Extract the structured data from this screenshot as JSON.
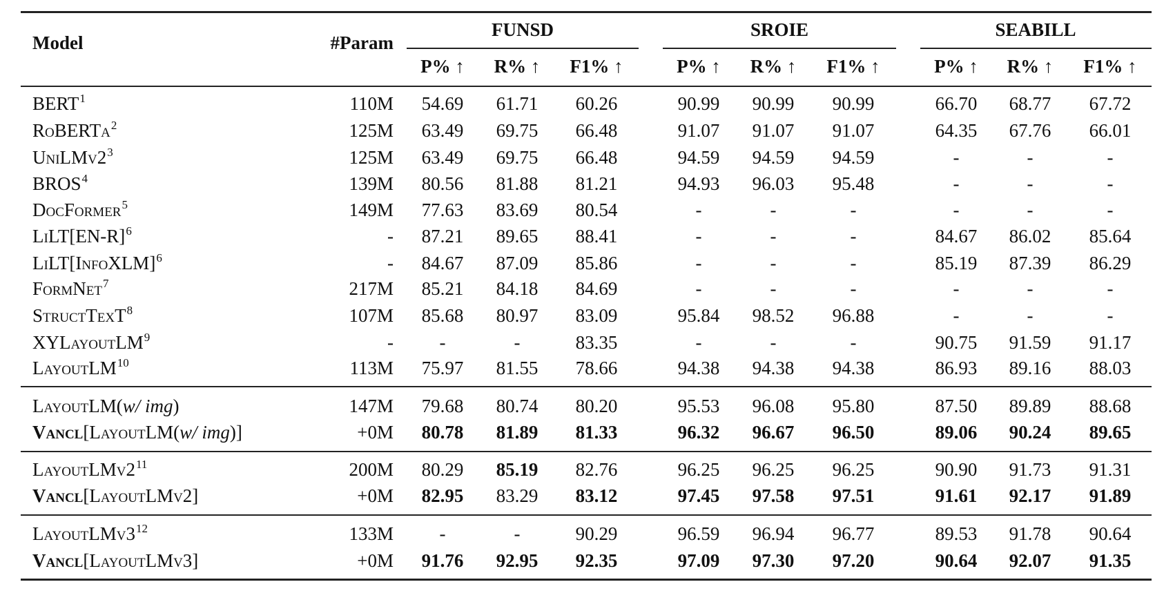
{
  "header": {
    "model": "Model",
    "param": "#Param",
    "groups": [
      "FUNSD",
      "SROIE",
      "SEABILL"
    ],
    "metrics": [
      "P%",
      "R%",
      "F1%"
    ],
    "arrow": "↑"
  },
  "rows": [
    {
      "model": [
        {
          "t": "BERT",
          "s": ""
        }
      ],
      "sup": "1",
      "param": "110M",
      "values": [
        "54.69",
        "61.71",
        "60.26",
        "90.99",
        "90.99",
        "90.99",
        "66.70",
        "68.77",
        "67.72"
      ],
      "bold": []
    },
    {
      "model": [
        {
          "t": "RoBERTa",
          "s": "sc"
        }
      ],
      "sup": "2",
      "param": "125M",
      "values": [
        "63.49",
        "69.75",
        "66.48",
        "91.07",
        "91.07",
        "91.07",
        "64.35",
        "67.76",
        "66.01"
      ],
      "bold": []
    },
    {
      "model": [
        {
          "t": "UniLMv2",
          "s": "sc"
        }
      ],
      "sup": "3",
      "param": "125M",
      "values": [
        "63.49",
        "69.75",
        "66.48",
        "94.59",
        "94.59",
        "94.59",
        "-",
        "-",
        "-"
      ],
      "bold": []
    },
    {
      "model": [
        {
          "t": "BROS",
          "s": ""
        }
      ],
      "sup": "4",
      "param": "139M",
      "values": [
        "80.56",
        "81.88",
        "81.21",
        "94.93",
        "96.03",
        "95.48",
        "-",
        "-",
        "-"
      ],
      "bold": []
    },
    {
      "model": [
        {
          "t": "DocFormer",
          "s": "sc"
        }
      ],
      "sup": "5",
      "param": "149M",
      "values": [
        "77.63",
        "83.69",
        "80.54",
        "-",
        "-",
        "-",
        "-",
        "-",
        "-"
      ],
      "bold": []
    },
    {
      "model": [
        {
          "t": "LiLT[EN-R]",
          "s": "sc"
        }
      ],
      "sup": "6",
      "param": "-",
      "values": [
        "87.21",
        "89.65",
        "88.41",
        "-",
        "-",
        "-",
        "84.67",
        "86.02",
        "85.64"
      ],
      "bold": []
    },
    {
      "model": [
        {
          "t": "LiLT[InfoXLM]",
          "s": "sc"
        }
      ],
      "sup": "6",
      "param": "-",
      "values": [
        "84.67",
        "87.09",
        "85.86",
        "-",
        "-",
        "-",
        "85.19",
        "87.39",
        "86.29"
      ],
      "bold": []
    },
    {
      "model": [
        {
          "t": "FormNet",
          "s": "sc"
        }
      ],
      "sup": "7",
      "param": "217M",
      "values": [
        "85.21",
        "84.18",
        "84.69",
        "-",
        "-",
        "-",
        "-",
        "-",
        "-"
      ],
      "bold": []
    },
    {
      "model": [
        {
          "t": "StructTexT",
          "s": "sc"
        }
      ],
      "sup": "8",
      "param": "107M",
      "values": [
        "85.68",
        "80.97",
        "83.09",
        "95.84",
        "98.52",
        "96.88",
        "-",
        "-",
        "-"
      ],
      "bold": []
    },
    {
      "model": [
        {
          "t": "XYLayoutLM",
          "s": "sc"
        }
      ],
      "sup": "9",
      "param": "-",
      "values": [
        "-",
        "-",
        "83.35",
        "-",
        "-",
        "-",
        "90.75",
        "91.59",
        "91.17"
      ],
      "bold": []
    },
    {
      "model": [
        {
          "t": "LayoutLM",
          "s": "sc"
        }
      ],
      "sup": "10",
      "param": "113M",
      "values": [
        "75.97",
        "81.55",
        "78.66",
        "94.38",
        "94.38",
        "94.38",
        "86.93",
        "89.16",
        "88.03"
      ],
      "bold": []
    },
    {
      "model": [
        {
          "t": "LayoutLM(",
          "s": "sc"
        },
        {
          "t": "w/ img",
          "s": "it"
        },
        {
          "t": ")",
          "s": ""
        }
      ],
      "sup": "",
      "param": "147M",
      "values": [
        "79.68",
        "80.74",
        "80.20",
        "95.53",
        "96.08",
        "95.80",
        "87.50",
        "89.89",
        "88.68"
      ],
      "bold": []
    },
    {
      "model": [
        {
          "t": "Vancl",
          "s": "sc b"
        },
        {
          "t": "[LayoutLM(",
          "s": "sc"
        },
        {
          "t": "w/ img",
          "s": "it"
        },
        {
          "t": ")]",
          "s": ""
        }
      ],
      "sup": "",
      "param": "+0M",
      "values": [
        "80.78",
        "81.89",
        "81.33",
        "96.32",
        "96.67",
        "96.50",
        "89.06",
        "90.24",
        "89.65"
      ],
      "bold": [
        0,
        1,
        2,
        3,
        4,
        5,
        6,
        7,
        8
      ]
    },
    {
      "model": [
        {
          "t": "LayoutLMv2",
          "s": "sc"
        }
      ],
      "sup": "11",
      "param": "200M",
      "values": [
        "80.29",
        "85.19",
        "82.76",
        "96.25",
        "96.25",
        "96.25",
        "90.90",
        "91.73",
        "91.31"
      ],
      "bold": [
        1
      ]
    },
    {
      "model": [
        {
          "t": "Vancl",
          "s": "sc b"
        },
        {
          "t": "[LayoutLMv2]",
          "s": "sc"
        }
      ],
      "sup": "",
      "param": "+0M",
      "values": [
        "82.95",
        "83.29",
        "83.12",
        "97.45",
        "97.58",
        "97.51",
        "91.61",
        "92.17",
        "91.89"
      ],
      "bold": [
        0,
        2,
        3,
        4,
        5,
        6,
        7,
        8
      ]
    },
    {
      "model": [
        {
          "t": "LayoutLMv3",
          "s": "sc"
        }
      ],
      "sup": "12",
      "param": "133M",
      "values": [
        "-",
        "-",
        "90.29",
        "96.59",
        "96.94",
        "96.77",
        "89.53",
        "91.78",
        "90.64"
      ],
      "bold": []
    },
    {
      "model": [
        {
          "t": "Vancl",
          "s": "sc b"
        },
        {
          "t": "[LayoutLMv3]",
          "s": "sc"
        }
      ],
      "sup": "",
      "param": "+0M",
      "values": [
        "91.76",
        "92.95",
        "92.35",
        "97.09",
        "97.30",
        "97.20",
        "90.64",
        "92.07",
        "91.35"
      ],
      "bold": [
        0,
        1,
        2,
        3,
        4,
        5,
        6,
        7,
        8
      ]
    }
  ]
}
